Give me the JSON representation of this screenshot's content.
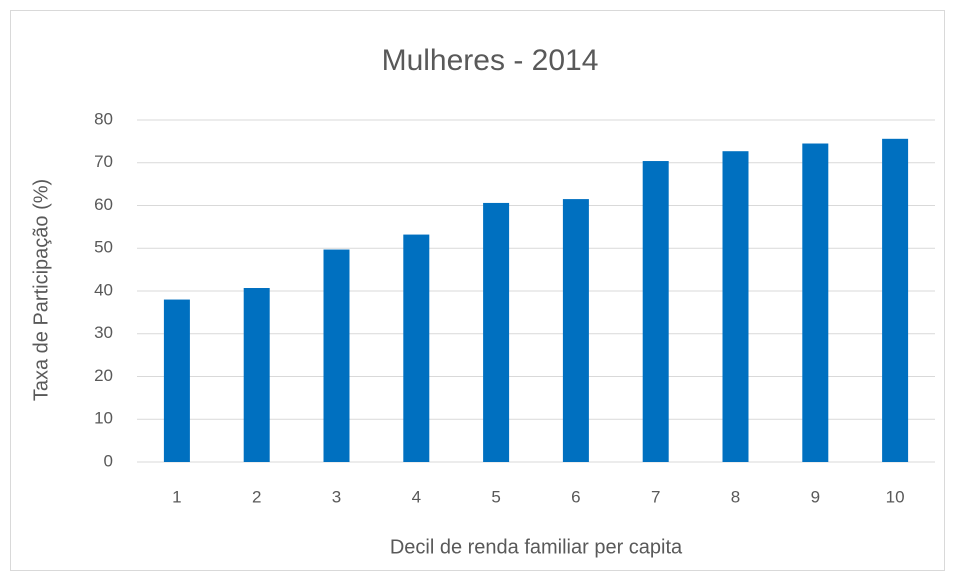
{
  "chart_data": {
    "type": "bar",
    "title": "Mulheres - 2014",
    "x_label": "Decil de renda familiar per capita",
    "y_label": "Taxa de Participação (%)",
    "categories": [
      "1",
      "2",
      "3",
      "4",
      "5",
      "6",
      "7",
      "8",
      "9",
      "10"
    ],
    "values": [
      38,
      40.7,
      49.7,
      53.2,
      60.6,
      61.5,
      70.4,
      72.7,
      74.5,
      75.6
    ],
    "color": "#0070c0",
    "ylim": [
      0,
      80
    ],
    "yticks": [
      0,
      10,
      20,
      30,
      40,
      50,
      60,
      70,
      80
    ],
    "grid": true
  }
}
